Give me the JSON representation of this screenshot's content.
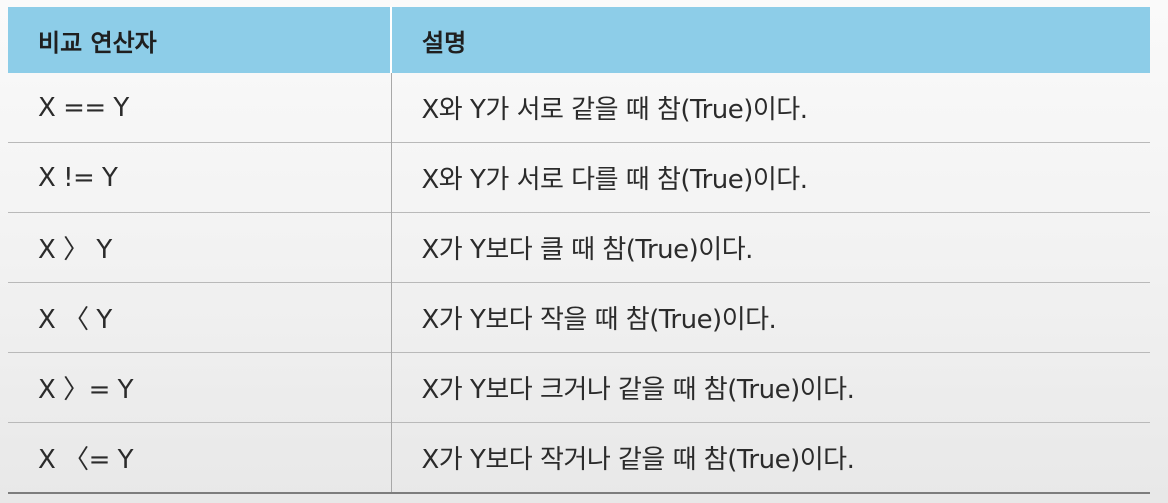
{
  "header": {
    "col1": "비교 연산자",
    "col2": "설명"
  },
  "rows": [
    {
      "operator": "X == Y",
      "description": "X와 Y가 서로 같을 때 참(True)이다."
    },
    {
      "operator": "X != Y",
      "description": "X와 Y가 서로 다를 때 참(True)이다."
    },
    {
      "operator": "X 〉 Y",
      "description": "X가 Y보다 클 때 참(True)이다."
    },
    {
      "operator": "X 〈 Y",
      "description": "X가 Y보다 작을 때 참(True)이다."
    },
    {
      "operator": "X 〉= Y",
      "description": "X가 Y보다 크거나 같을 때 참(True)이다."
    },
    {
      "operator": "X 〈= Y",
      "description": "X가 Y보다 작거나 같을 때 참(True)이다."
    }
  ],
  "colors": {
    "header_background": "#8dcde8",
    "text": "#2b2b2b",
    "row_divider": "#b9b9b9"
  }
}
